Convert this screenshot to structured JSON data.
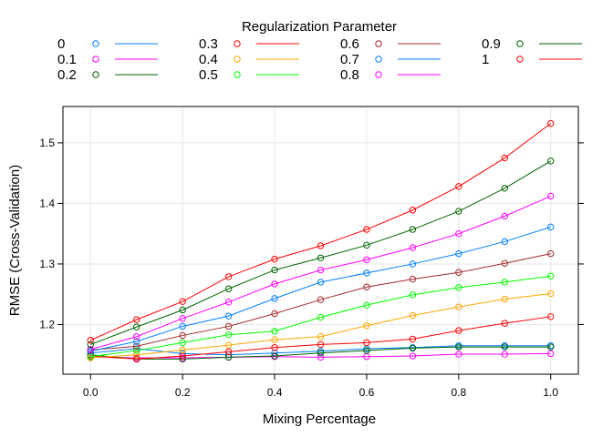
{
  "chart_data": {
    "type": "line",
    "title": "",
    "legend_title": "Regularization Parameter",
    "legend_placement": "top",
    "xlabel": "Mixing Percentage",
    "ylabel": "RMSE (Cross-Validation)",
    "xlim": [
      -0.06,
      1.06
    ],
    "ylim": [
      1.118,
      1.56
    ],
    "x_ticks": [
      0.0,
      0.2,
      0.4,
      0.6,
      0.8,
      1.0
    ],
    "x_tick_labels": [
      "0.0",
      "0.2",
      "0.4",
      "0.6",
      "0.8",
      "1.0"
    ],
    "y_ticks": [
      1.2,
      1.3,
      1.4,
      1.5
    ],
    "y_tick_labels": [
      "1.2",
      "1.3",
      "1.4",
      "1.5"
    ],
    "grid": true,
    "markers": "open-circle",
    "x": [
      0.0,
      0.1,
      0.2,
      0.3,
      0.4,
      0.5,
      0.6,
      0.7,
      0.8,
      0.9,
      1.0
    ],
    "series": [
      {
        "name": "0",
        "color": "#0080ff",
        "values": [
          1.153,
          1.16,
          1.152,
          1.15,
          1.153,
          1.156,
          1.16,
          1.162,
          1.165,
          1.165,
          1.165
        ]
      },
      {
        "name": "0.1",
        "color": "#ff00ff",
        "values": [
          1.146,
          1.145,
          1.145,
          1.146,
          1.147,
          1.146,
          1.147,
          1.148,
          1.151,
          1.151,
          1.152
        ]
      },
      {
        "name": "0.2",
        "color": "#006400",
        "values": [
          1.15,
          1.143,
          1.143,
          1.146,
          1.148,
          1.153,
          1.157,
          1.161,
          1.163,
          1.163,
          1.163
        ]
      },
      {
        "name": "0.3",
        "color": "#ff0000",
        "values": [
          1.148,
          1.143,
          1.148,
          1.155,
          1.162,
          1.167,
          1.17,
          1.176,
          1.19,
          1.202,
          1.213
        ]
      },
      {
        "name": "0.4",
        "color": "#ffa500",
        "values": [
          1.145,
          1.15,
          1.158,
          1.166,
          1.175,
          1.18,
          1.198,
          1.215,
          1.229,
          1.242,
          1.251
        ]
      },
      {
        "name": "0.5",
        "color": "#00ff00",
        "values": [
          1.147,
          1.157,
          1.17,
          1.183,
          1.189,
          1.212,
          1.232,
          1.249,
          1.261,
          1.27,
          1.28
        ]
      },
      {
        "name": "0.6",
        "color": "#a52a2a",
        "values": [
          1.158,
          1.164,
          1.182,
          1.197,
          1.218,
          1.241,
          1.262,
          1.275,
          1.286,
          1.301,
          1.317
        ]
      },
      {
        "name": "0.7",
        "color": "#0080ff",
        "values": [
          1.156,
          1.172,
          1.197,
          1.214,
          1.243,
          1.27,
          1.285,
          1.3,
          1.317,
          1.337,
          1.361
        ]
      },
      {
        "name": "0.8",
        "color": "#ff00ff",
        "values": [
          1.159,
          1.18,
          1.21,
          1.237,
          1.267,
          1.29,
          1.307,
          1.327,
          1.35,
          1.379,
          1.412
        ]
      },
      {
        "name": "0.9",
        "color": "#006400",
        "values": [
          1.167,
          1.196,
          1.224,
          1.259,
          1.29,
          1.31,
          1.331,
          1.357,
          1.387,
          1.425,
          1.47
        ]
      },
      {
        "name": "1",
        "color": "#ff0000",
        "values": [
          1.174,
          1.208,
          1.238,
          1.279,
          1.308,
          1.33,
          1.357,
          1.389,
          1.428,
          1.475,
          1.532
        ]
      }
    ]
  }
}
